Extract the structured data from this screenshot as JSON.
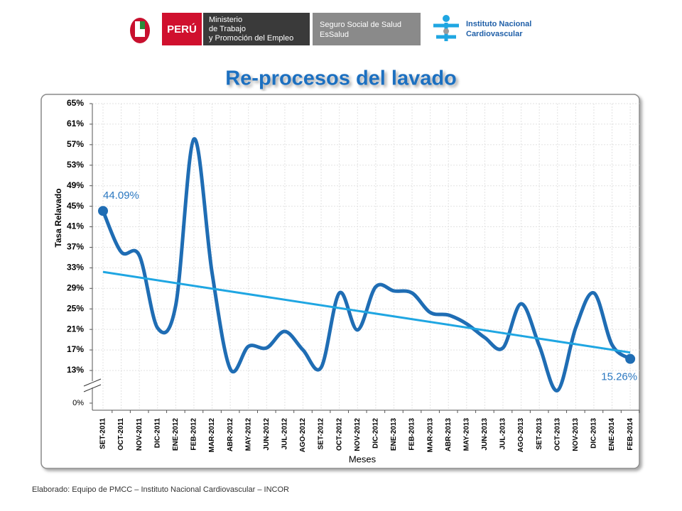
{
  "header": {
    "country": "PERÚ",
    "ministry": [
      "Ministerio",
      "de Trabajo",
      "y Promoción del Empleo"
    ],
    "essalud": [
      "Seguro Social de Salud",
      "EsSalud"
    ],
    "institute": [
      "Instituto Nacional",
      "Cardiovascular"
    ]
  },
  "footer": "Elaborado: Equipo de PMCC – Instituto Nacional Cardiovascular – INCOR",
  "chart_data": {
    "type": "line",
    "title": "Re-procesos del lavado",
    "x_label": "Meses",
    "y_label": "Tasa Relavado",
    "categories": [
      "SET-2011",
      "OCT-2011",
      "NOV-2011",
      "DIC-2011",
      "ENE-2012",
      "FEB-2012",
      "MAR-2012",
      "ABR-2012",
      "MAY-2012",
      "JUN-2012",
      "JUL-2012",
      "AGO-2012",
      "SET-2012",
      "OCT-2012",
      "NOV-2012",
      "DIC-2012",
      "ENE-2013",
      "FEB-2013",
      "MAR-2013",
      "ABR-2013",
      "MAY-2013",
      "JUN-2013",
      "JUL-2013",
      "AGO-2013",
      "SET-2013",
      "OCT-2013",
      "NOV-2013",
      "DIC-2013",
      "ENE-2014",
      "FEB-2014"
    ],
    "values": [
      44.09,
      36.1,
      35.4,
      21.3,
      25.7,
      58.1,
      32.0,
      13.3,
      17.7,
      17.4,
      20.6,
      17.0,
      13.6,
      28.1,
      20.9,
      29.3,
      28.5,
      28.1,
      24.3,
      23.8,
      22.1,
      19.4,
      17.4,
      26.0,
      17.8,
      9.1,
      21.3,
      28.1,
      18.0,
      15.26
    ],
    "value_labels": [
      "44.09%",
      null,
      null,
      null,
      null,
      null,
      null,
      null,
      null,
      null,
      null,
      null,
      null,
      null,
      null,
      null,
      null,
      null,
      null,
      null,
      null,
      null,
      null,
      null,
      null,
      null,
      null,
      null,
      null,
      "15.26%"
    ],
    "color": "#1f6db4",
    "trendline": {
      "values": [
        32.2,
        16.5
      ],
      "color": "#1fa6e2"
    },
    "ylim": [
      0,
      65
    ],
    "yticks": [
      {
        "value": 0,
        "label": "0%"
      },
      {
        "value": 13,
        "label": "13%"
      },
      {
        "value": 17,
        "label": "17%"
      },
      {
        "value": 21,
        "label": "21%"
      },
      {
        "value": 25,
        "label": "25%"
      },
      {
        "value": 29,
        "label": "29%"
      },
      {
        "value": 33,
        "label": "33%"
      },
      {
        "value": 37,
        "label": "37%"
      },
      {
        "value": 41,
        "label": "41%"
      },
      {
        "value": 45,
        "label": "45%"
      },
      {
        "value": 49,
        "label": "49%"
      },
      {
        "value": 53,
        "label": "53%"
      },
      {
        "value": 57,
        "label": "57%"
      },
      {
        "value": 61,
        "label": "61%"
      },
      {
        "value": 65,
        "label": "65%"
      }
    ],
    "axis_break": true,
    "grid": true
  }
}
